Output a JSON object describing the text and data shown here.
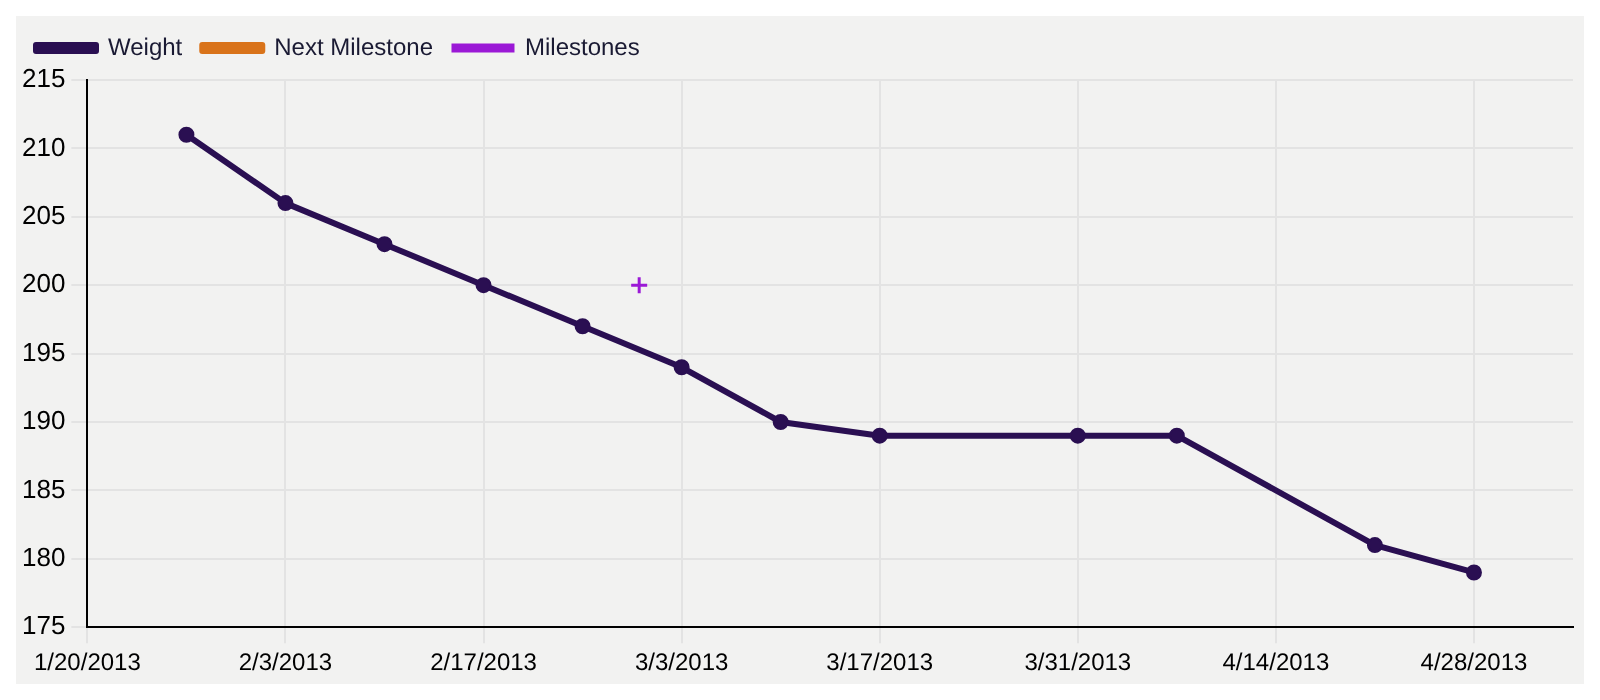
{
  "chart_data": {
    "type": "line",
    "legend": "top left",
    "grid": true,
    "xlim": [
      "2013-01-20",
      "2013-05-05"
    ],
    "xticks": [
      {
        "value": "2013-01-20",
        "label": "1/20/2013"
      },
      {
        "value": "2013-02-03",
        "label": "2/3/2013"
      },
      {
        "value": "2013-02-17",
        "label": "2/17/2013"
      },
      {
        "value": "2013-03-03",
        "label": "3/3/2013"
      },
      {
        "value": "2013-03-17",
        "label": "3/17/2013"
      },
      {
        "value": "2013-03-31",
        "label": "3/31/2013"
      },
      {
        "value": "2013-04-14",
        "label": "4/14/2013"
      },
      {
        "value": "2013-04-28",
        "label": "4/28/2013"
      }
    ],
    "ylim": [
      175,
      215
    ],
    "yticks": [
      175,
      180,
      185,
      190,
      195,
      200,
      205,
      210,
      215
    ],
    "series": [
      {
        "name": "Weight",
        "color": "#2a0f52",
        "marker": "circle",
        "x": [
          "2013-01-27",
          "2013-02-03",
          "2013-02-10",
          "2013-02-17",
          "2013-02-24",
          "2013-03-03",
          "2013-03-10",
          "2013-03-17",
          "2013-03-31",
          "2013-04-07",
          "2013-04-21",
          "2013-04-28"
        ],
        "values": [
          211,
          206,
          203,
          200,
          197,
          194,
          190,
          189,
          189,
          189,
          181,
          179
        ]
      },
      {
        "name": "Next Milestone",
        "color": "#d9731a"
      },
      {
        "name": "Milestones",
        "color": "#9b19d6",
        "type": "scatter",
        "marker": "cross",
        "x": [
          "2013-02-28"
        ],
        "values": [
          200
        ]
      }
    ]
  }
}
